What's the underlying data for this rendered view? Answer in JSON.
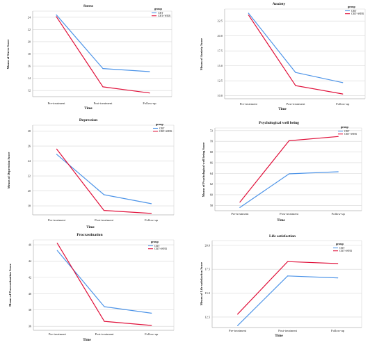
{
  "figure": {
    "legend_title": "group",
    "colors": {
      "CBT": "#4d94e8",
      "CBT+WEB": "#e0103a",
      "grid": "#d6d6d6",
      "axis": "#b0b0b0"
    }
  },
  "chart_data": [
    {
      "type": "line",
      "title": "Stress",
      "xlabel": "Time",
      "ylabel": "Means of Stress Score",
      "categories": [
        "Pre-treatment",
        "Post-treatment",
        "Follow-up"
      ],
      "yticks": [
        "12",
        "14",
        "16",
        "18",
        "20",
        "22",
        "24"
      ],
      "ylim": [
        11,
        25
      ],
      "legend": [
        "CBT",
        "CBT+WEB"
      ],
      "series": [
        {
          "name": "CBT",
          "values": [
            24.4,
            15.6,
            15.1
          ]
        },
        {
          "name": "CBT+WEB",
          "values": [
            24.1,
            12.6,
            11.6
          ]
        }
      ]
    },
    {
      "type": "line",
      "title": "Anxiety",
      "xlabel": "Time",
      "ylabel": "Means of Anxiety Score",
      "categories": [
        "Pre-treatment",
        "Post-treatment",
        "Follow-up"
      ],
      "yticks": [
        "10.0",
        "12.5",
        "15.0",
        "17.5",
        "20.0",
        "22.5"
      ],
      "ylim": [
        9.5,
        24.5
      ],
      "legend": [
        "CBT",
        "CBT+WEB"
      ],
      "series": [
        {
          "name": "CBT",
          "values": [
            23.8,
            13.9,
            12.2
          ]
        },
        {
          "name": "CBT+WEB",
          "values": [
            23.5,
            11.7,
            10.3
          ]
        }
      ]
    },
    {
      "type": "line",
      "title": "Depression",
      "xlabel": "Time",
      "ylabel": "Means of Depression Score",
      "categories": [
        "Pre-treatment",
        "Post-treatment",
        "Follow-up"
      ],
      "yticks": [
        "18",
        "20",
        "22",
        "24",
        "26",
        "28"
      ],
      "ylim": [
        16.8,
        28.8
      ],
      "legend": [
        "CBT",
        "CBT+WEB"
      ],
      "series": [
        {
          "name": "CBT",
          "values": [
            24.9,
            19.5,
            18.3
          ]
        },
        {
          "name": "CBT+WEB",
          "values": [
            25.6,
            17.4,
            17.0
          ]
        }
      ]
    },
    {
      "type": "line",
      "title": "Psychological well being",
      "xlabel": "Time",
      "ylabel": "Means of Psychological well being Score",
      "categories": [
        "Pre-treatment",
        "Post-treatment",
        "Follow-up"
      ],
      "yticks": [
        "58",
        "60",
        "62",
        "64",
        "66",
        "68",
        "70",
        "72"
      ],
      "ylim": [
        57,
        72.5
      ],
      "legend": [
        "CBT",
        "CBT+WEB"
      ],
      "series": [
        {
          "name": "CBT",
          "values": [
            57.6,
            63.9,
            64.3
          ]
        },
        {
          "name": "CBT+WEB",
          "values": [
            58.6,
            70.1,
            70.9
          ]
        }
      ]
    },
    {
      "type": "line",
      "title": "Procrastination",
      "xlabel": "Time",
      "ylabel": "Means of Procrastination Score",
      "categories": [
        "Pre-treatment",
        "Post-treatment",
        "Follow-up"
      ],
      "yticks": [
        "36",
        "38",
        "40",
        "42",
        "44",
        "46"
      ],
      "ylim": [
        35.5,
        46.6
      ],
      "legend": [
        "CBT",
        "CBT+WEB"
      ],
      "series": [
        {
          "name": "CBT",
          "values": [
            45.3,
            38.4,
            37.6
          ]
        },
        {
          "name": "CBT+WEB",
          "values": [
            46.2,
            36.6,
            36.1
          ]
        }
      ]
    },
    {
      "type": "line",
      "title": "Life satisfaction",
      "xlabel": "Time",
      "ylabel": "Means of Life satisfaction Score",
      "categories": [
        "Pre-treatment",
        "Post-treatment",
        "Follow-up"
      ],
      "yticks": [
        "12.5",
        "15.0",
        "17.5",
        "20.0"
      ],
      "ylim": [
        11.4,
        20.5
      ],
      "legend": [
        "CBT",
        "CBT+WEB"
      ],
      "series": [
        {
          "name": "CBT",
          "values": [
            11.6,
            16.8,
            16.6
          ]
        },
        {
          "name": "CBT+WEB",
          "values": [
            12.8,
            18.3,
            18.1
          ]
        }
      ]
    }
  ]
}
